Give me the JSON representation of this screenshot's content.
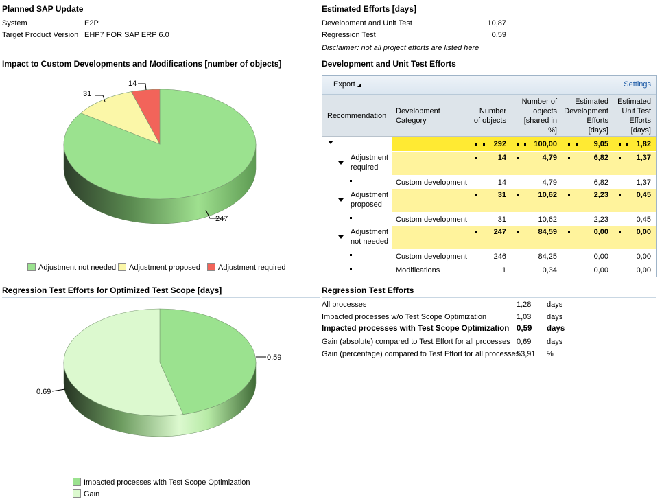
{
  "planned": {
    "title": "Planned SAP Update",
    "system_label": "System",
    "system_value": "E2P",
    "target_label": "Target Product Version",
    "target_value": "EHP7 FOR SAP ERP 6.0"
  },
  "estimated": {
    "title": "Estimated Efforts [days]",
    "dev_label": "Development and Unit Test",
    "dev_value": "10,87",
    "reg_label": "Regression Test",
    "reg_value": "0,59",
    "disclaimer": "Disclaimer: not all project efforts are listed here"
  },
  "impact": {
    "title": "Impact to Custom Developments and Modifications [number of objects]",
    "legend": {
      "not_needed": "Adjustment not needed",
      "proposed": "Adjustment proposed",
      "required": "Adjustment required"
    },
    "labels": {
      "v247": "247",
      "v31": "31",
      "v14": "14"
    }
  },
  "devtest": {
    "title": "Development and Unit Test Efforts",
    "export": "Export",
    "settings": "Settings",
    "headers": {
      "recommendation": "Recommendation",
      "dev_cat_1": "Development",
      "dev_cat_2": "Category",
      "num_1": "Number",
      "num_2": "of objects",
      "share_1": "Number of",
      "share_2": "objects",
      "share_3": "[shared in",
      "share_4": "%]",
      "estdev_1": "Estimated",
      "estdev_2": "Development",
      "estdev_3": "Efforts",
      "estdev_4": "[days]",
      "estunit_1": "Estimated",
      "estunit_2": "Unit Test",
      "estunit_3": "Efforts",
      "estunit_4": "[days]"
    },
    "total": {
      "num": "292",
      "share": "100,00",
      "dev": "9,05",
      "unit": "1,82"
    },
    "groups": {
      "req": {
        "label_1": "Adjustment",
        "label_2": "required",
        "num": "14",
        "share": "4,79",
        "dev": "6,82",
        "unit": "1,37"
      },
      "req_cd": {
        "cat": "Custom development",
        "num": "14",
        "share": "4,79",
        "dev": "6,82",
        "unit": "1,37"
      },
      "prop": {
        "label_1": "Adjustment",
        "label_2": "proposed",
        "num": "31",
        "share": "10,62",
        "dev": "2,23",
        "unit": "0,45"
      },
      "prop_cd": {
        "cat": "Custom development",
        "num": "31",
        "share": "10,62",
        "dev": "2,23",
        "unit": "0,45"
      },
      "notn": {
        "label_1": "Adjustment",
        "label_2": "not needed",
        "num": "247",
        "share": "84,59",
        "dev": "0,00",
        "unit": "0,00"
      },
      "notn_cd": {
        "cat": "Custom development",
        "num": "246",
        "share": "84,25",
        "dev": "0,00",
        "unit": "0,00"
      },
      "notn_mod": {
        "cat": "Modifications",
        "num": "1",
        "share": "0,34",
        "dev": "0,00",
        "unit": "0,00"
      }
    }
  },
  "regtest": {
    "title": "Regression Test Efforts for Optimized Test Scope [days]",
    "labels": {
      "v059": "0.59",
      "v069": "0.69"
    },
    "legend": {
      "impacted": "Impacted processes with Test Scope Optimization",
      "gain": "Gain"
    }
  },
  "regeff": {
    "title": "Regression Test Efforts",
    "rows": [
      {
        "label": "All processes",
        "value": "1,28",
        "unit": "days",
        "bold": false
      },
      {
        "label": "Impacted processes w/o Test Scope Optimization",
        "value": "1,03",
        "unit": "days",
        "bold": false
      },
      {
        "label": "Impacted processes with Test Scope Optimization",
        "value": "0,59",
        "unit": "days",
        "bold": true
      },
      {
        "label": "Gain (absolute) compared to Test Effort for all processes",
        "value": "0,69",
        "unit": "days",
        "bold": false
      },
      {
        "label": "Gain (percentage) compared to Test Effort for all processes",
        "value": "53,91",
        "unit": "%",
        "bold": false
      }
    ]
  },
  "chart_data": [
    {
      "type": "pie",
      "title": "Impact to Custom Developments and Modifications [number of objects]",
      "categories": [
        "Adjustment not needed",
        "Adjustment proposed",
        "Adjustment required"
      ],
      "values": [
        247,
        31,
        14
      ],
      "colors": [
        "#9be28f",
        "#fbf7a8",
        "#f2645a"
      ]
    },
    {
      "type": "pie",
      "title": "Regression Test Efforts for Optimized Test Scope [days]",
      "categories": [
        "Impacted processes with Test Scope Optimization",
        "Gain"
      ],
      "values": [
        0.59,
        0.69
      ],
      "colors": [
        "#9be28f",
        "#dcf9cf"
      ]
    }
  ]
}
